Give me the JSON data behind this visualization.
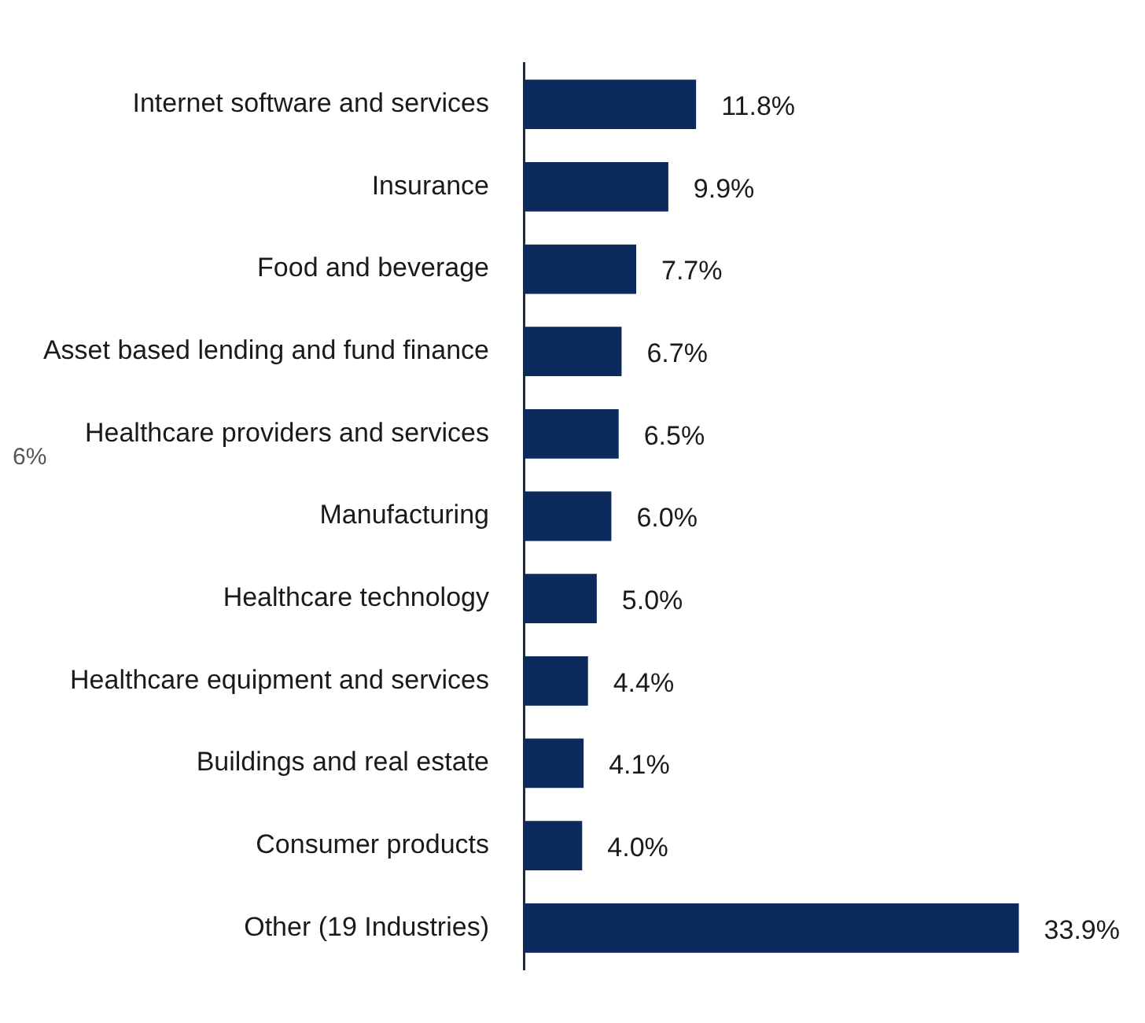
{
  "chart_data": {
    "type": "bar",
    "orientation": "horizontal",
    "categories": [
      "Internet software and services",
      "Insurance",
      "Food and beverage",
      "Asset based lending and fund finance",
      "Healthcare providers and services",
      "Manufacturing",
      "Healthcare technology",
      "Healthcare equipment and services",
      "Buildings and real estate",
      "Consumer products",
      "Other (19 Industries)"
    ],
    "values": [
      11.8,
      9.9,
      7.7,
      6.7,
      6.5,
      6.0,
      5.0,
      4.4,
      4.1,
      4.0,
      33.9
    ],
    "value_labels": [
      "11.8%",
      "9.9%",
      "7.7%",
      "6.7%",
      "6.5%",
      "6.0%",
      "5.0%",
      "4.4%",
      "4.1%",
      "4.0%",
      "33.9%"
    ],
    "color": "#0d2a5c",
    "annotations": [
      "6%"
    ],
    "legend": false,
    "tick_labels": "y"
  }
}
